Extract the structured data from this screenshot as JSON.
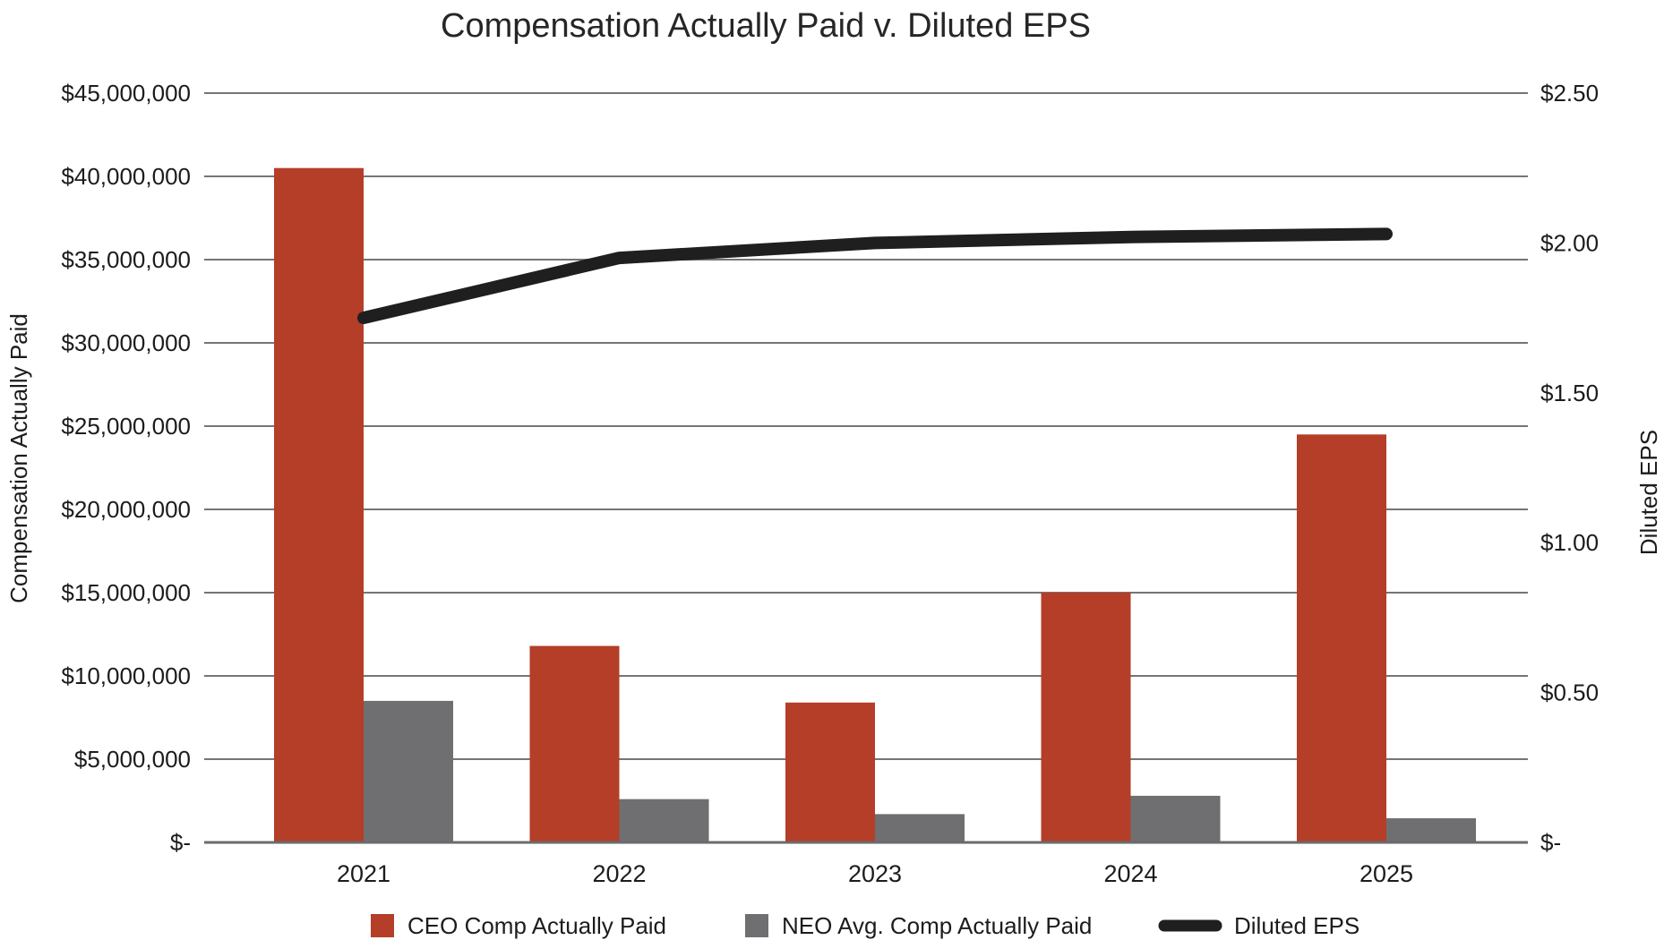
{
  "title": "Compensation Actually Paid v. Diluted EPS",
  "left_axis": {
    "title": "Compensation Actually Paid",
    "tick_labels": [
      "$45,000,000",
      "$40,000,000",
      "$35,000,000",
      "$30,000,000",
      "$25,000,000",
      "$20,000,000",
      "$15,000,000",
      "$10,000,000",
      "$5,000,000",
      "$-"
    ],
    "max": 45000000,
    "step": 5000000
  },
  "right_axis": {
    "title": "Diluted EPS",
    "tick_labels": [
      "$2.50",
      "$2.00",
      "$1.50",
      "$1.00",
      "$0.50",
      "$-"
    ],
    "max": 2.5,
    "step": 0.5
  },
  "x_axis": {
    "categories": [
      "2021",
      "2022",
      "2023",
      "2024",
      "2025"
    ]
  },
  "legend": [
    {
      "label": "CEO Comp Actually Paid",
      "swatch": "square",
      "color": "#b43e28"
    },
    {
      "label": "NEO Avg. Comp Actually Paid",
      "swatch": "square",
      "color": "#6f6f72"
    },
    {
      "label": "Diluted EPS",
      "swatch": "line",
      "color": "#1f1f1f"
    }
  ],
  "colors": {
    "ceo_bar": "#b43e28",
    "neo_bar": "#6f6f72",
    "eps_line": "#1f1f1f",
    "gridline": "#757575",
    "axis_line": "#6b6b6b",
    "tick_text": "#1c1c1c",
    "title_text": "#262626",
    "background": "#ffffff"
  },
  "chart_data": {
    "type": "combo-bar-line",
    "title": "Compensation Actually Paid v. Diluted EPS",
    "categories": [
      "2021",
      "2022",
      "2023",
      "2024",
      "2025"
    ],
    "series": [
      {
        "name": "CEO Comp Actually Paid",
        "type": "bar",
        "axis": "left",
        "color": "#b43e28",
        "values": [
          40500000,
          11800000,
          8400000,
          15000000,
          24500000
        ]
      },
      {
        "name": "NEO Avg. Comp Actually Paid",
        "type": "bar",
        "axis": "left",
        "color": "#6f6f72",
        "values": [
          8500000,
          2600000,
          1700000,
          2800000,
          1450000
        ]
      },
      {
        "name": "Diluted EPS",
        "type": "line",
        "axis": "right",
        "color": "#1f1f1f",
        "values": [
          1.75,
          1.95,
          2.0,
          2.02,
          2.03
        ]
      }
    ],
    "left_ylabel": "Compensation Actually Paid",
    "right_ylabel": "Diluted EPS",
    "left_ylim": [
      0,
      45000000
    ],
    "left_tick_step": 5000000,
    "right_ylim": [
      0,
      2.5
    ],
    "right_label_step": 0.5,
    "grid": true,
    "legend_position": "bottom"
  }
}
